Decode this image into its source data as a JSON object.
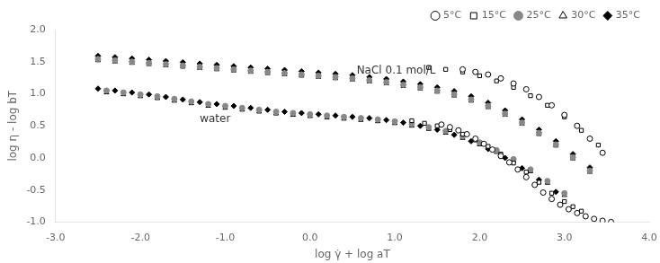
{
  "chart_data": {
    "type": "scatter",
    "x_label": "log γ̇ + log aT",
    "y_label": "log η - log bT",
    "xlim": [
      -3.0,
      4.0
    ],
    "ylim": [
      -1.0,
      2.0
    ],
    "xticks": [
      {
        "value": -3,
        "label": "-3.0"
      },
      {
        "value": -2,
        "label": "-2.0"
      },
      {
        "value": -1,
        "label": "-1.0"
      },
      {
        "value": 0,
        "label": "0.0"
      },
      {
        "value": 1,
        "label": "1.0"
      },
      {
        "value": 2,
        "label": "2.0"
      },
      {
        "value": 3,
        "label": "3.0"
      },
      {
        "value": 4,
        "label": "4.0"
      }
    ],
    "yticks": [
      {
        "value": -1,
        "label": "-1.0"
      },
      -0.5,
      {
        "value": 0,
        "label": "0.0"
      },
      0.5,
      {
        "value": 1,
        "label": "1.0"
      },
      1.5,
      {
        "value": 2,
        "label": "2.0"
      }
    ],
    "grid": false,
    "legend": "upper right",
    "annotations": [
      {
        "text": "NaCl 0.1 mol/L",
        "x": 0.55,
        "y": 1.28
      },
      {
        "text": "water",
        "x": -1.3,
        "y": 0.52
      }
    ],
    "series": [
      {
        "name": "5°C",
        "color": "black",
        "marker": "circle_open",
        "x": [
          1.55,
          1.65,
          1.75,
          1.85,
          1.95,
          2.05,
          2.15,
          2.25,
          2.35,
          2.45,
          2.55,
          2.65,
          2.75,
          2.85,
          2.95,
          3.05,
          3.15,
          3.25,
          3.35,
          3.45,
          3.55
        ],
        "values": [
          0.52,
          0.48,
          0.43,
          0.37,
          0.3,
          0.22,
          0.13,
          0.03,
          -0.07,
          -0.18,
          -0.3,
          -0.42,
          -0.54,
          -0.64,
          -0.73,
          -0.8,
          -0.86,
          -0.91,
          -0.95,
          -0.98,
          -1.0
        ]
      },
      {
        "name": "15°C",
        "color": "black",
        "marker": "square_open",
        "x": [
          1.2,
          1.35,
          1.5,
          1.65,
          1.8,
          1.95,
          2.1,
          2.25,
          2.4,
          2.55,
          2.7,
          2.85,
          3.0,
          3.1,
          3.2
        ],
        "values": [
          0.58,
          0.54,
          0.5,
          0.44,
          0.37,
          0.28,
          0.18,
          0.06,
          -0.08,
          -0.22,
          -0.38,
          -0.55,
          -0.68,
          -0.76,
          -0.83
        ]
      },
      {
        "name": "25°C",
        "color": "#888888",
        "marker": "circle",
        "x": [
          -2.4,
          -2.2,
          -2.0,
          -1.8,
          -1.6,
          -1.4,
          -1.2,
          -1.0,
          -0.8,
          -0.6,
          -0.4,
          -0.2,
          0.0,
          0.2,
          0.4,
          0.6,
          0.8,
          1.0,
          1.2,
          1.4,
          1.6,
          1.8,
          2.0,
          2.2,
          2.4,
          2.6,
          2.8,
          3.0
        ],
        "values": [
          1.05,
          1.02,
          0.99,
          0.96,
          0.92,
          0.88,
          0.84,
          0.81,
          0.78,
          0.75,
          0.72,
          0.7,
          0.68,
          0.66,
          0.64,
          0.62,
          0.6,
          0.57,
          0.53,
          0.48,
          0.42,
          0.34,
          0.24,
          0.12,
          -0.02,
          -0.18,
          -0.36,
          -0.55
        ]
      },
      {
        "name": "30°C",
        "color": "black",
        "marker": "triangle_open",
        "x": [
          -2.4,
          -2.2,
          -2.0,
          -1.8,
          -1.6,
          -1.4,
          -1.2,
          -1.0,
          -0.8,
          -0.6,
          -0.4,
          -0.2,
          0.0,
          0.2,
          0.4,
          0.6,
          0.8,
          1.0,
          1.2,
          1.4,
          1.6,
          1.8,
          2.0,
          2.2,
          2.4,
          2.6,
          2.8,
          3.0
        ],
        "values": [
          1.02,
          0.99,
          0.96,
          0.93,
          0.89,
          0.85,
          0.81,
          0.78,
          0.75,
          0.72,
          0.69,
          0.67,
          0.65,
          0.63,
          0.61,
          0.59,
          0.57,
          0.54,
          0.5,
          0.45,
          0.39,
          0.31,
          0.21,
          0.09,
          -0.05,
          -0.21,
          -0.39,
          -0.58
        ]
      },
      {
        "name": "35°C",
        "color": "black",
        "marker": "diamond",
        "x": [
          -2.5,
          -2.3,
          -2.1,
          -1.9,
          -1.7,
          -1.5,
          -1.3,
          -1.1,
          -0.9,
          -0.7,
          -0.5,
          -0.3,
          -0.1,
          0.1,
          0.3,
          0.5,
          0.7,
          0.9,
          1.1,
          1.3,
          1.5,
          1.7,
          1.9,
          2.1,
          2.3,
          2.5,
          2.7,
          2.9
        ],
        "values": [
          1.08,
          1.05,
          1.02,
          0.99,
          0.95,
          0.91,
          0.87,
          0.84,
          0.81,
          0.78,
          0.75,
          0.72,
          0.7,
          0.68,
          0.66,
          0.64,
          0.62,
          0.59,
          0.55,
          0.5,
          0.44,
          0.36,
          0.26,
          0.14,
          0.0,
          -0.16,
          -0.34,
          -0.53
        ]
      },
      {
        "name": "5°C",
        "color": "black",
        "marker": "circle_open",
        "x": [
          1.8,
          1.95,
          2.1,
          2.25,
          2.4,
          2.55,
          2.7,
          2.85,
          3.0,
          3.15,
          3.3,
          3.45
        ],
        "values": [
          1.38,
          1.34,
          1.3,
          1.24,
          1.16,
          1.07,
          0.95,
          0.82,
          0.67,
          0.5,
          0.3,
          0.08
        ]
      },
      {
        "name": "15°C",
        "color": "black",
        "marker": "square_open",
        "x": [
          1.4,
          1.6,
          1.8,
          2.0,
          2.2,
          2.4,
          2.6,
          2.8,
          3.0,
          3.2,
          3.4
        ],
        "values": [
          1.41,
          1.38,
          1.34,
          1.28,
          1.2,
          1.1,
          0.97,
          0.82,
          0.64,
          0.43,
          0.2
        ]
      },
      {
        "name": "25°C",
        "color": "#888888",
        "marker": "circle",
        "x": [
          -2.5,
          -2.3,
          -2.1,
          -1.9,
          -1.7,
          -1.5,
          -1.3,
          -1.1,
          -0.9,
          -0.7,
          -0.5,
          -0.3,
          -0.1,
          0.1,
          0.3,
          0.5,
          0.7,
          0.9,
          1.1,
          1.3,
          1.5,
          1.7,
          1.9,
          2.1,
          2.3,
          2.5,
          2.7,
          2.9,
          3.1,
          3.3
        ],
        "values": [
          1.54,
          1.52,
          1.5,
          1.48,
          1.46,
          1.44,
          1.42,
          1.4,
          1.38,
          1.36,
          1.34,
          1.32,
          1.3,
          1.28,
          1.26,
          1.24,
          1.21,
          1.18,
          1.14,
          1.1,
          1.05,
          0.99,
          0.91,
          0.81,
          0.69,
          0.55,
          0.39,
          0.21,
          0.01,
          -0.2
        ]
      },
      {
        "name": "30°C",
        "color": "black",
        "marker": "triangle_open",
        "x": [
          -2.5,
          -2.3,
          -2.1,
          -1.9,
          -1.7,
          -1.5,
          -1.3,
          -1.1,
          -0.9,
          -0.7,
          -0.5,
          -0.3,
          -0.1,
          0.1,
          0.3,
          0.5,
          0.7,
          0.9,
          1.1,
          1.3,
          1.5,
          1.7,
          1.9,
          2.1,
          2.3,
          2.5,
          2.7,
          2.9,
          3.1,
          3.3
        ],
        "values": [
          1.52,
          1.5,
          1.48,
          1.46,
          1.44,
          1.42,
          1.4,
          1.38,
          1.36,
          1.34,
          1.32,
          1.3,
          1.28,
          1.26,
          1.24,
          1.22,
          1.19,
          1.16,
          1.12,
          1.08,
          1.03,
          0.97,
          0.89,
          0.79,
          0.67,
          0.53,
          0.37,
          0.19,
          -0.01,
          -0.22
        ]
      },
      {
        "name": "35°C",
        "color": "black",
        "marker": "diamond",
        "x": [
          -2.5,
          -2.3,
          -2.1,
          -1.9,
          -1.7,
          -1.5,
          -1.3,
          -1.1,
          -0.9,
          -0.7,
          -0.5,
          -0.3,
          -0.1,
          0.1,
          0.3,
          0.5,
          0.7,
          0.9,
          1.1,
          1.3,
          1.5,
          1.7,
          1.9,
          2.1,
          2.3,
          2.5,
          2.7,
          2.9,
          3.1,
          3.3
        ],
        "values": [
          1.59,
          1.57,
          1.55,
          1.53,
          1.51,
          1.49,
          1.47,
          1.45,
          1.43,
          1.41,
          1.39,
          1.37,
          1.35,
          1.33,
          1.31,
          1.29,
          1.26,
          1.23,
          1.19,
          1.15,
          1.1,
          1.04,
          0.96,
          0.86,
          0.74,
          0.6,
          0.44,
          0.26,
          0.06,
          -0.15
        ]
      }
    ]
  }
}
